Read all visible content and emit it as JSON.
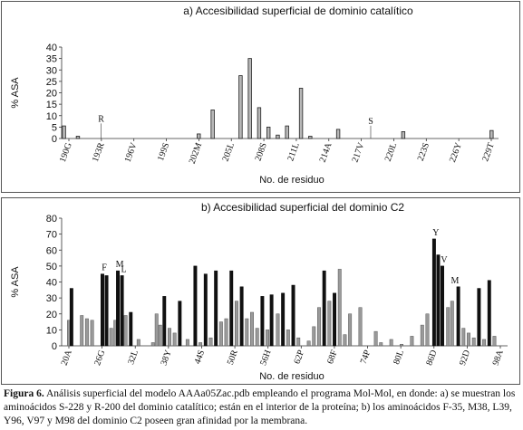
{
  "chart_data": [
    {
      "type": "bar",
      "title": "a) Accesibilidad superficial de dominio catalítico",
      "xlabel": "No. de residuo",
      "ylabel": "% ASA",
      "ylim": [
        0,
        40
      ],
      "yticks": [
        0,
        5,
        10,
        15,
        20,
        25,
        30,
        35,
        40
      ],
      "x_tick_labels": [
        "190G",
        "193R",
        "196V",
        "199S",
        "202M",
        "205L",
        "208S",
        "211L",
        "214A",
        "217V",
        "220L",
        "223S",
        "226Y",
        "229T"
      ],
      "values": [
        5.5,
        0,
        0,
        1,
        0,
        0,
        0,
        0,
        0,
        0,
        0,
        0,
        0,
        0,
        0,
        0,
        0,
        0,
        0,
        0,
        0,
        0,
        0,
        0,
        0,
        0,
        0,
        0,
        0,
        2,
        0,
        0,
        12.5,
        0,
        0,
        0,
        0,
        0,
        27.5,
        0,
        35,
        0,
        13.5,
        0,
        5,
        0,
        1.5,
        0,
        5.5,
        0,
        0,
        22,
        0,
        1,
        0,
        0,
        0,
        0,
        0,
        4,
        0,
        0,
        0,
        0,
        0,
        0,
        0,
        0,
        0,
        0,
        0,
        0,
        0,
        3,
        0,
        0,
        0,
        0,
        0,
        0,
        0,
        0,
        0,
        0,
        0,
        0,
        0,
        0,
        0,
        0,
        0,
        0,
        3.5,
        0
      ],
      "annotations": [
        {
          "label": "R",
          "index": 8,
          "value": 7
        },
        {
          "label": "S",
          "index": 66,
          "value": 6
        }
      ]
    },
    {
      "type": "bar",
      "title": "b) Accesibilidad superficial del dominio C2",
      "xlabel": "No. de residuo",
      "ylabel": "% ASA",
      "ylim": [
        0,
        80
      ],
      "yticks": [
        0,
        10,
        20,
        30,
        40,
        50,
        60,
        70,
        80
      ],
      "x_tick_labels": [
        "20A",
        "26G",
        "32L",
        "38Y",
        "44S",
        "50R",
        "56H",
        "62P",
        "68F",
        "74P",
        "80L",
        "86D",
        "92D",
        "98A"
      ],
      "bars_black": [
        {
          "pos": 0.5,
          "value": 36
        },
        {
          "pos": 6.5,
          "value": 45
        },
        {
          "pos": 7.3,
          "value": 44
        },
        {
          "pos": 9.5,
          "value": 47
        },
        {
          "pos": 10.3,
          "value": 44
        },
        {
          "pos": 12,
          "value": 21
        },
        {
          "pos": 18.5,
          "value": 31
        },
        {
          "pos": 21.5,
          "value": 28
        },
        {
          "pos": 24.5,
          "value": 50
        },
        {
          "pos": 26.5,
          "value": 45
        },
        {
          "pos": 28.5,
          "value": 47
        },
        {
          "pos": 31.5,
          "value": 47
        },
        {
          "pos": 33.5,
          "value": 37
        },
        {
          "pos": 37.5,
          "value": 31
        },
        {
          "pos": 39.3,
          "value": 32
        },
        {
          "pos": 41.5,
          "value": 33
        },
        {
          "pos": 43.5,
          "value": 38
        },
        {
          "pos": 49.5,
          "value": 47
        },
        {
          "pos": 51.5,
          "value": 33
        },
        {
          "pos": 70.8,
          "value": 67
        },
        {
          "pos": 71.6,
          "value": 57
        },
        {
          "pos": 72.4,
          "value": 50
        },
        {
          "pos": 75.5,
          "value": 37
        },
        {
          "pos": 79.5,
          "value": 36
        },
        {
          "pos": 81.5,
          "value": 41
        }
      ],
      "bars_gray": [
        {
          "pos": 0,
          "value": 16
        },
        {
          "pos": 2.5,
          "value": 19
        },
        {
          "pos": 3.5,
          "value": 17
        },
        {
          "pos": 4.5,
          "value": 16
        },
        {
          "pos": 8.2,
          "value": 11
        },
        {
          "pos": 9,
          "value": 16
        },
        {
          "pos": 11,
          "value": 19
        },
        {
          "pos": 13.5,
          "value": 4
        },
        {
          "pos": 16.3,
          "value": 2
        },
        {
          "pos": 17,
          "value": 20
        },
        {
          "pos": 17.7,
          "value": 13
        },
        {
          "pos": 19.5,
          "value": 11
        },
        {
          "pos": 20.5,
          "value": 8
        },
        {
          "pos": 23,
          "value": 4
        },
        {
          "pos": 25.5,
          "value": 2
        },
        {
          "pos": 27.5,
          "value": 5
        },
        {
          "pos": 29.5,
          "value": 15
        },
        {
          "pos": 30.5,
          "value": 17
        },
        {
          "pos": 32.5,
          "value": 28
        },
        {
          "pos": 34.5,
          "value": 17
        },
        {
          "pos": 35.5,
          "value": 21
        },
        {
          "pos": 36.5,
          "value": 11
        },
        {
          "pos": 38.5,
          "value": 10
        },
        {
          "pos": 40.5,
          "value": 20
        },
        {
          "pos": 42.5,
          "value": 10
        },
        {
          "pos": 44.5,
          "value": 5
        },
        {
          "pos": 46.5,
          "value": 3
        },
        {
          "pos": 47.5,
          "value": 12
        },
        {
          "pos": 48.5,
          "value": 24
        },
        {
          "pos": 50.5,
          "value": 28
        },
        {
          "pos": 52.5,
          "value": 48
        },
        {
          "pos": 53.5,
          "value": 7
        },
        {
          "pos": 54.5,
          "value": 20
        },
        {
          "pos": 56.5,
          "value": 24
        },
        {
          "pos": 59.5,
          "value": 9
        },
        {
          "pos": 60.5,
          "value": 2
        },
        {
          "pos": 62.5,
          "value": 4
        },
        {
          "pos": 64.5,
          "value": 1
        },
        {
          "pos": 66.5,
          "value": 6
        },
        {
          "pos": 68.5,
          "value": 13
        },
        {
          "pos": 69.5,
          "value": 20
        },
        {
          "pos": 73.5,
          "value": 24
        },
        {
          "pos": 74.3,
          "value": 28
        },
        {
          "pos": 76.5,
          "value": 11
        },
        {
          "pos": 77.5,
          "value": 8
        },
        {
          "pos": 78.5,
          "value": 5
        },
        {
          "pos": 80.5,
          "value": 4
        },
        {
          "pos": 82.5,
          "value": 6
        }
      ],
      "annotations": [
        {
          "label": "F",
          "pos": 6.5,
          "value": 45
        },
        {
          "label": "M",
          "pos": 9.5,
          "value": 47
        },
        {
          "label": "L",
          "pos": 10.3,
          "value": 44
        },
        {
          "label": "Y",
          "pos": 70.8,
          "value": 67
        },
        {
          "label": "V",
          "pos": 72.4,
          "value": 50
        },
        {
          "label": "M",
          "pos": 74.5,
          "value": 37
        }
      ]
    }
  ],
  "caption": {
    "label": "Figura 6.",
    "text": " Análisis superficial del modelo AAAa05Zac.pdb empleando el programa Mol-Mol, en donde: a) se muestran los aminoácidos S-228 y R-200 del dominio catalítico; están en el interior de la proteína; b) los aminoácidos F-35, M38, L39, Y96, V97 y M98 del dominio C2 poseen gran afinidad por la membrana."
  }
}
